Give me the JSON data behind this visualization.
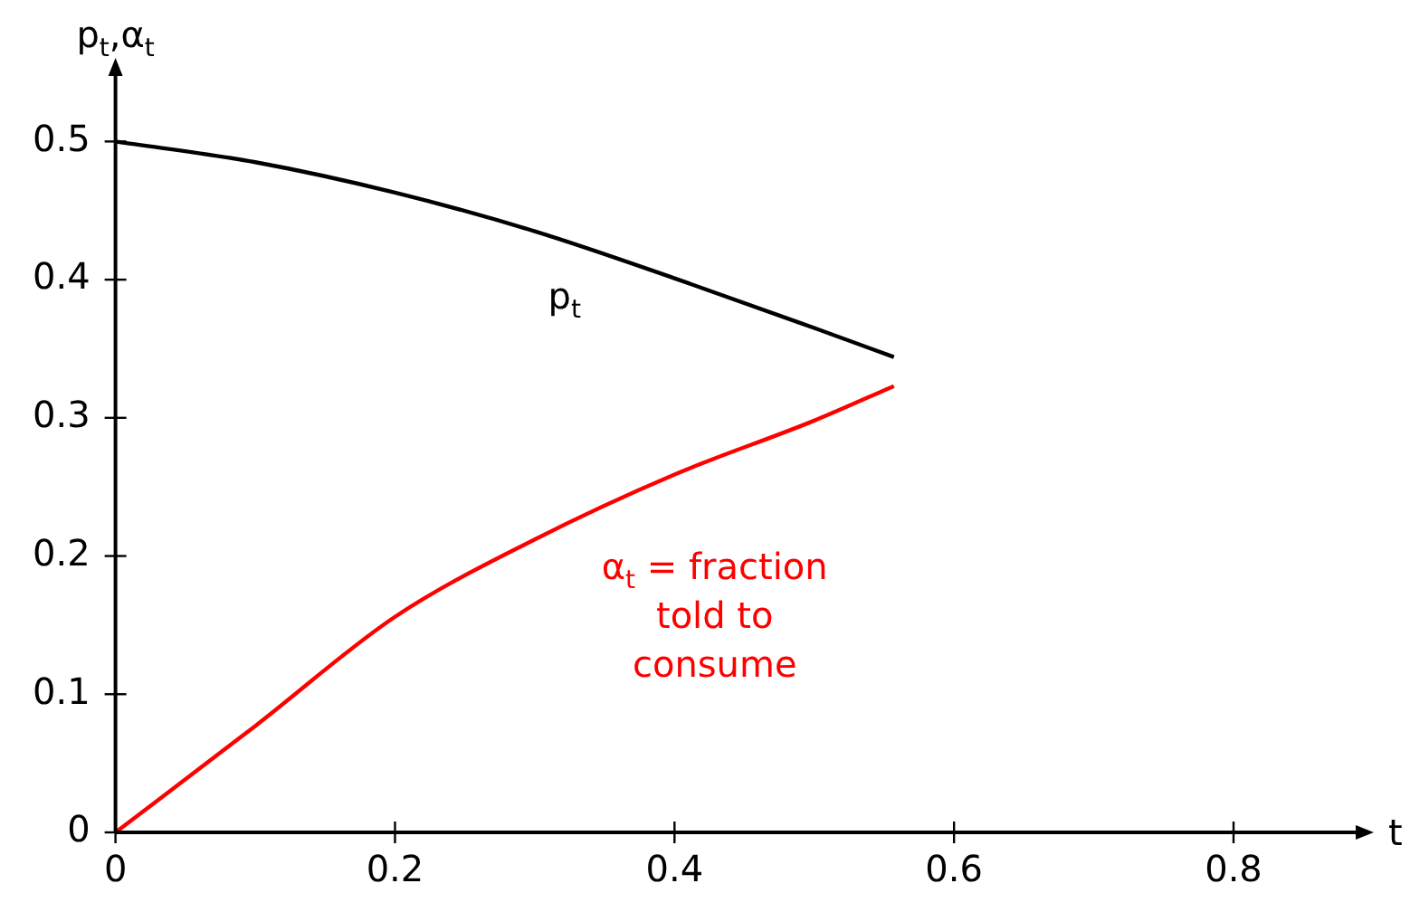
{
  "chart_data": {
    "type": "line",
    "xlabel": "t",
    "ylabel": "p$_{t}$,α$_{t}$",
    "xlim": [
      0,
      0.89
    ],
    "ylim": [
      0,
      0.55
    ],
    "xticks": [
      0,
      0.2,
      0.4,
      0.6,
      0.8
    ],
    "yticks": [
      0,
      0.1,
      0.2,
      0.3,
      0.4,
      0.5
    ],
    "grid": false,
    "legend": false,
    "marker": "none",
    "line_style": "solid",
    "series": [
      {
        "name": "p$_{t}$",
        "color": "#000000",
        "x": [
          0,
          0.1,
          0.2,
          0.3,
          0.4,
          0.5,
          0.557
        ],
        "values": [
          0.5,
          0.485,
          0.463,
          0.435,
          0.401,
          0.365,
          0.344
        ]
      },
      {
        "name": "α$_{t}$ = fraction told to consume",
        "color": "#ff0000",
        "x": [
          0,
          0.1,
          0.2,
          0.3,
          0.4,
          0.5,
          0.557
        ],
        "values": [
          0,
          0.077,
          0.156,
          0.212,
          0.259,
          0.298,
          0.323
        ]
      }
    ]
  }
}
